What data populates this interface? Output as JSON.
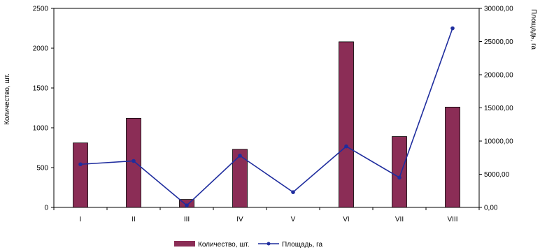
{
  "chart_data": {
    "type": "bar",
    "categories": [
      "I",
      "II",
      "III",
      "IV",
      "V",
      "VI",
      "VII",
      "VIII"
    ],
    "series": [
      {
        "name": "Количество, шт.",
        "type": "bar",
        "axis": "left",
        "color": "#8B2D56",
        "values": [
          810,
          1120,
          100,
          730,
          null,
          2080,
          890,
          1260
        ]
      },
      {
        "name": "Площадь, га",
        "type": "line",
        "axis": "right",
        "color": "#1F2D9E",
        "values": [
          6500,
          7000,
          300,
          7800,
          2300,
          9200,
          4500,
          27000
        ]
      }
    ],
    "y_left": {
      "label": "Количество, шт.",
      "range": [
        0,
        2500
      ],
      "ticks": [
        "0",
        "500",
        "1000",
        "1500",
        "2000",
        "2500"
      ],
      "tick_values": [
        0,
        500,
        1000,
        1500,
        2000,
        2500
      ]
    },
    "y_right": {
      "label": "Площадь, га",
      "range": [
        0,
        30000
      ],
      "ticks": [
        "0,00",
        "5000,00",
        "10000,00",
        "15000,00",
        "20000,00",
        "25000,00",
        "30000,00"
      ],
      "tick_values": [
        0,
        5000,
        10000,
        15000,
        20000,
        25000,
        30000
      ]
    },
    "grid": false,
    "legend": {
      "position": "bottom",
      "entries": [
        "Количество, шт.",
        "Площадь, га"
      ]
    }
  }
}
